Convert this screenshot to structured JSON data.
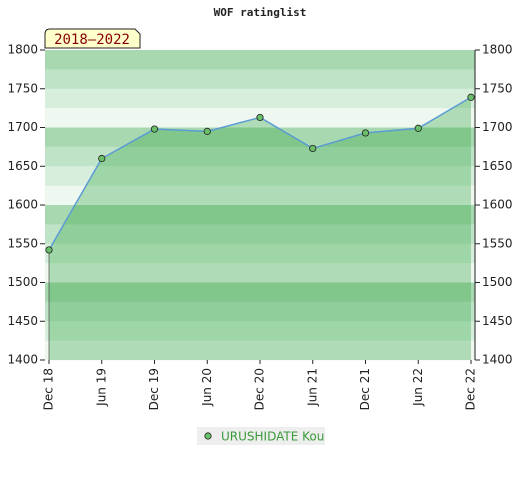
{
  "chart_data": {
    "type": "line",
    "title": "WOF ratinglist",
    "annotation": "2018–2022",
    "categories": [
      "Dec 18",
      "Jun 19",
      "Dec 19",
      "Jun 20",
      "Dec 20",
      "Jun 21",
      "Dec 21",
      "Jun 22",
      "Dec 22"
    ],
    "series": [
      {
        "name": "URUSHIDATE Kou",
        "color": "#6abf69",
        "values": [
          1542,
          1660,
          1698,
          1695,
          1713,
          1673,
          1693,
          1699,
          1739
        ]
      }
    ],
    "ylim": [
      1400,
      1800
    ],
    "yticks": [
      1400,
      1450,
      1500,
      1550,
      1600,
      1650,
      1700,
      1750,
      1800
    ]
  }
}
